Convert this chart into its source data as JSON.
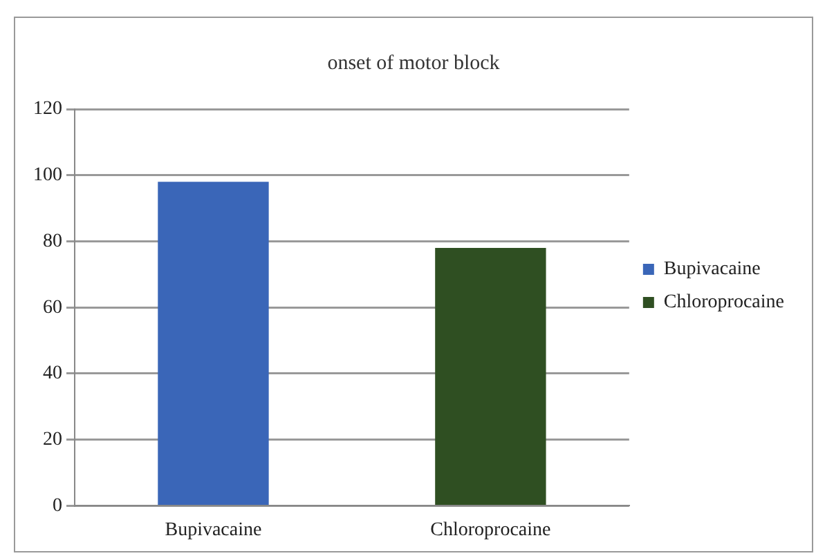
{
  "chart_data": {
    "type": "bar",
    "title": "onset of motor block",
    "categories": [
      "Bupivacaine",
      "Chloroprocaine"
    ],
    "series": [
      {
        "name": "Bupivacaine",
        "color": "#3a66b8",
        "values": [
          98,
          null
        ]
      },
      {
        "name": "Chloroprocaine",
        "color": "#2f4f22",
        "values": [
          null,
          78
        ]
      }
    ],
    "ylim": [
      0,
      120
    ],
    "yticks": [
      0,
      20,
      40,
      60,
      80,
      100,
      120
    ],
    "grid": "y",
    "legend": "right"
  }
}
